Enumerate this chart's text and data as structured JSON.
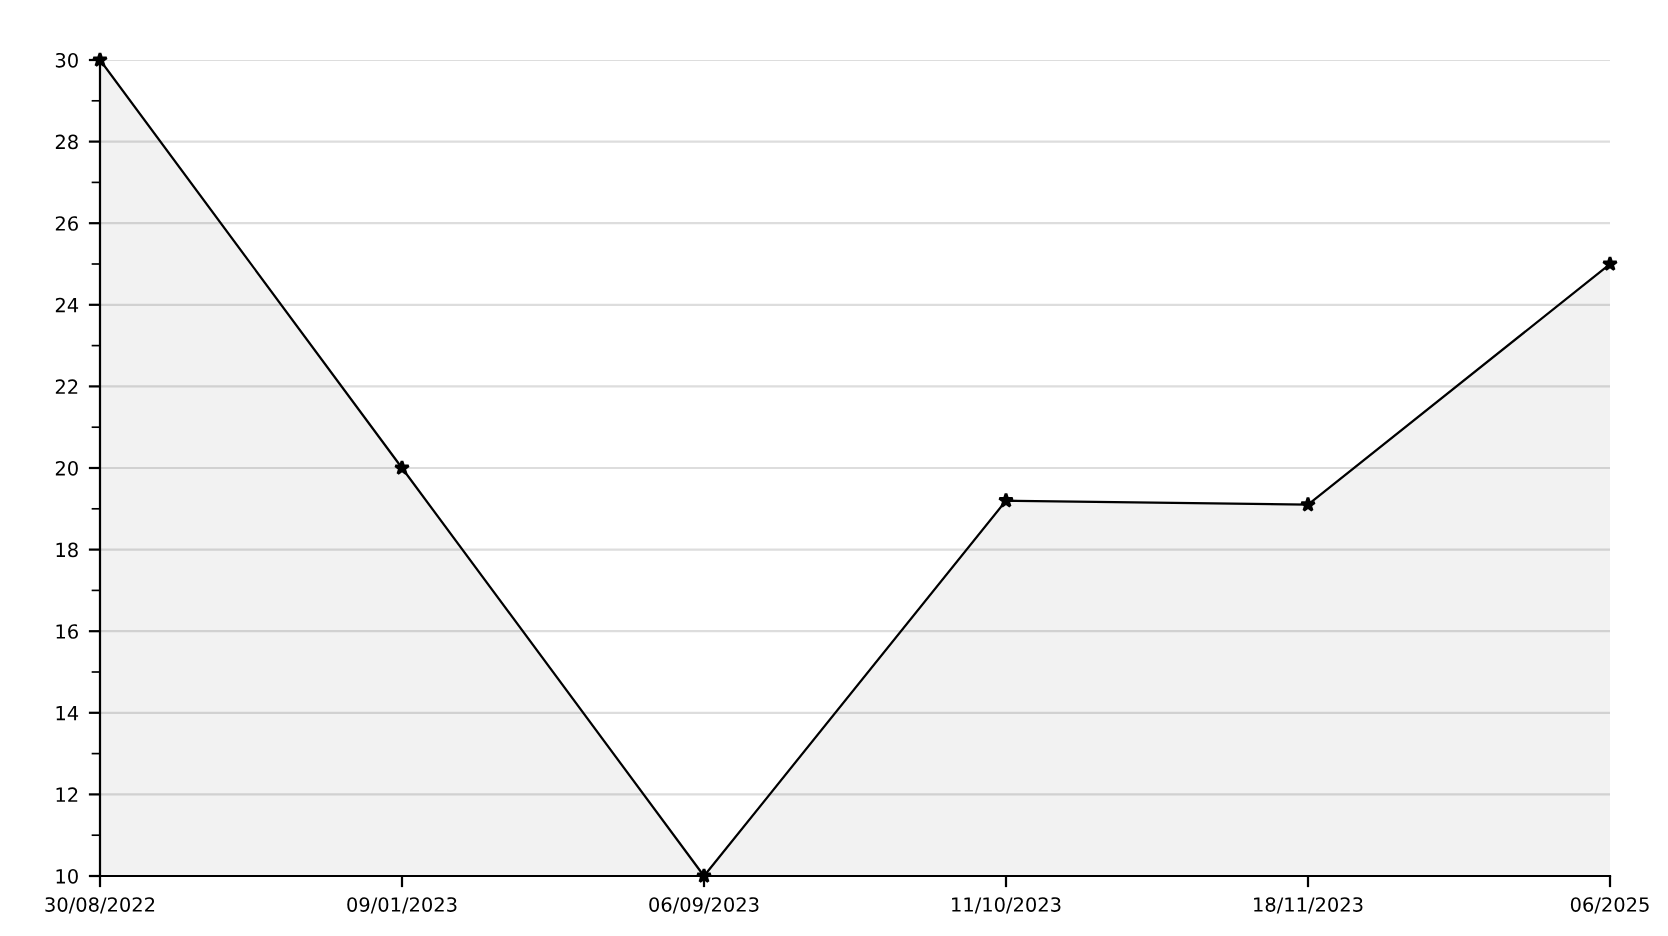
{
  "chart_data": {
    "type": "area",
    "categories": [
      "30/08/2022",
      "09/01/2023",
      "06/09/2023",
      "11/10/2023",
      "18/11/2023",
      "06/2025"
    ],
    "series": [
      {
        "color": "#000000",
        "values": [
          30,
          20,
          10,
          19.2,
          19.1,
          25
        ]
      }
    ],
    "ylim": [
      10,
      30
    ],
    "yticks": [
      10,
      12,
      14,
      16,
      18,
      20,
      22,
      24,
      26,
      28,
      30
    ],
    "grid": "y",
    "marker": "star",
    "line_style": "solid"
  }
}
